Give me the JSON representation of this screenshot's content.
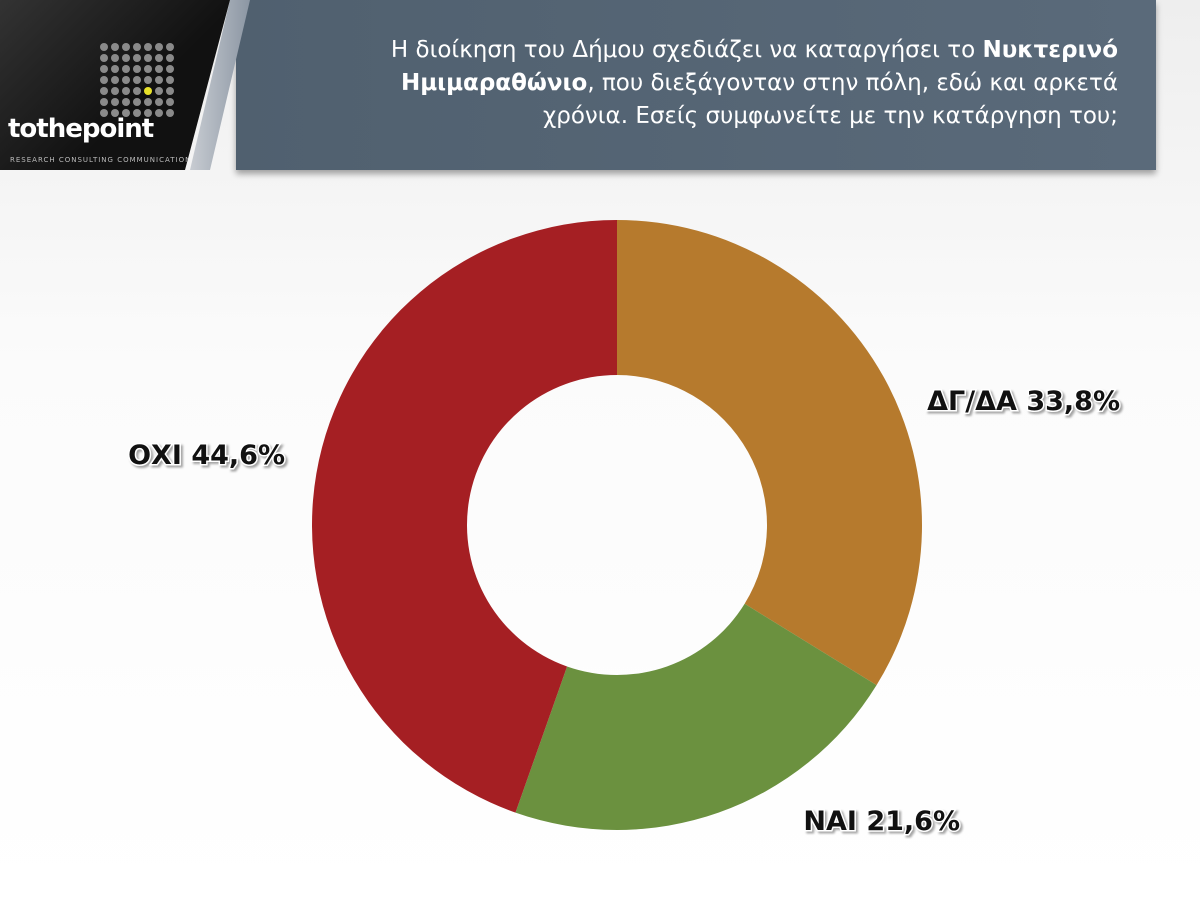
{
  "logo": {
    "name": "tothepoint",
    "tagline": "RESEARCH CONSULTING COMMUNICATION"
  },
  "chart_data": {
    "type": "pie",
    "donut": true,
    "title_parts": [
      "Η διοίκηση του Δήμου σχεδιάζει να καταργήσει το ",
      "Νυκτερινό Ημιμαραθώνιο",
      ", που διεξάγονταν στην πόλη, εδώ και αρκετά χρόνια. Εσείς συμφωνείτε με την κατάργηση του;"
    ],
    "categories": [
      "ΔΓ/ΔΑ",
      "ΝΑΙ",
      "ΟΧΙ"
    ],
    "values": [
      33.8,
      21.6,
      44.6
    ],
    "value_labels": [
      "33,8%",
      "21,6%",
      "44,6%"
    ],
    "colors": [
      "#b67a2d",
      "#6b913f",
      "#a51f23"
    ]
  }
}
